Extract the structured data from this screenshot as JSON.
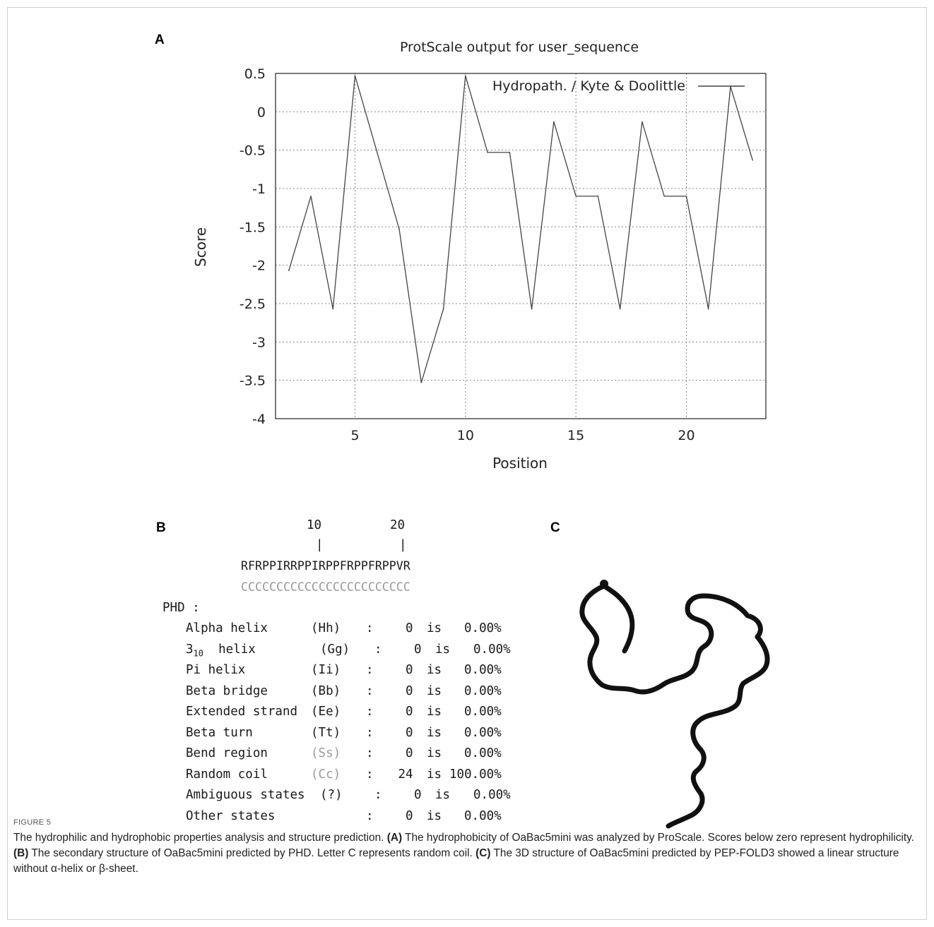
{
  "panels": {
    "a": "A",
    "b": "B",
    "c": "C"
  },
  "chart_data": {
    "type": "line",
    "title": "ProtScale output for user_sequence",
    "xlabel": "Position",
    "ylabel": "Score",
    "legend": "Hydropath. / Kyte & Doolittle",
    "legend_position": "top-right",
    "grid": true,
    "xlim": [
      1.4,
      23.6
    ],
    "ylim": [
      -4,
      0.5
    ],
    "xticks": [
      5,
      10,
      15,
      20
    ],
    "yticks": [
      0.5,
      0,
      -0.5,
      -1,
      -1.5,
      -2,
      -2.5,
      -3,
      -3.5,
      -4
    ],
    "ytick_labels": [
      "0.5",
      "0",
      "-0.5",
      "-1",
      "-1.5",
      "-2",
      "-2.5",
      "-3",
      "-3.5",
      "-4"
    ],
    "xtick_labels": [
      "5",
      "10",
      "15",
      "20"
    ],
    "series": [
      {
        "name": "Hydropath. / Kyte & Doolittle",
        "color": "#444444",
        "x": [
          2,
          3,
          4,
          5,
          6,
          7,
          8,
          9,
          10,
          11,
          12,
          13,
          14,
          15,
          16,
          17,
          18,
          19,
          20,
          21,
          22,
          23
        ],
        "y": [
          -2.07,
          -1.1,
          -2.57,
          0.47,
          -0.53,
          -1.53,
          -3.53,
          -2.57,
          0.47,
          -0.53,
          -0.53,
          -2.57,
          -0.13,
          -1.1,
          -1.1,
          -2.57,
          -0.13,
          -1.1,
          -1.1,
          -2.57,
          0.33,
          -0.63
        ]
      }
    ]
  },
  "phd": {
    "ruler_10": "10",
    "ruler_20": "20",
    "ruler_tick": "|",
    "sequence": "RFRPPIRRPPIRPPFRPPFRPPVR",
    "prediction": "CCCCCCCCCCCCCCCCCCCCCCCC",
    "header": "PHD :",
    "rows": [
      {
        "name": "Alpha helix",
        "code": "(Hh)",
        "colon": ":",
        "count": "0",
        "is": "is",
        "pct": "0.00%"
      },
      {
        "name": "helix",
        "prefix": "3",
        "sub": "10",
        "code": "(Gg)",
        "colon": ":",
        "count": "0",
        "is": "is",
        "pct": "0.00%"
      },
      {
        "name": "Pi helix",
        "code": "(Ii)",
        "colon": ":",
        "count": "0",
        "is": "is",
        "pct": "0.00%"
      },
      {
        "name": "Beta bridge",
        "code": "(Bb)",
        "colon": ":",
        "count": "0",
        "is": "is",
        "pct": "0.00%"
      },
      {
        "name": "Extended strand",
        "code": "(Ee)",
        "colon": ":",
        "count": "0",
        "is": "is",
        "pct": "0.00%"
      },
      {
        "name": "Beta turn",
        "code": "(Tt)",
        "colon": ":",
        "count": "0",
        "is": "is",
        "pct": "0.00%"
      },
      {
        "name": "Bend region",
        "code": "(Ss)",
        "colon": ":",
        "count": "0",
        "is": "is",
        "pct": "0.00%"
      },
      {
        "name": "Random coil",
        "code": "(Cc)",
        "colon": ":",
        "count": "24",
        "is": "is",
        "pct": "100.00%"
      },
      {
        "name": "Ambiguous states",
        "code": "(?)",
        "colon": ":",
        "count": "0",
        "is": "is",
        "pct": "0.00%"
      },
      {
        "name": "Other states",
        "code": "",
        "colon": ":",
        "count": "0",
        "is": "is",
        "pct": "0.00%"
      }
    ]
  },
  "caption": {
    "label": "FIGURE 5",
    "intro": "The hydrophilic and hydrophobic properties analysis and structure prediction.",
    "a_tag": "(A)",
    "a_text": "The hydrophobicity of OaBac5mini was analyzed by ProScale. Scores below zero represent hydrophilicity.",
    "b_tag": "(B)",
    "b_text": "The secondary structure of OaBac5mini predicted by PHD. Letter C represents random coil.",
    "c_tag": "(C)",
    "c_text": "The 3D structure of OaBac5mini predicted by PEP-FOLD3 showed a linear structure without α-helix or β-sheet."
  }
}
